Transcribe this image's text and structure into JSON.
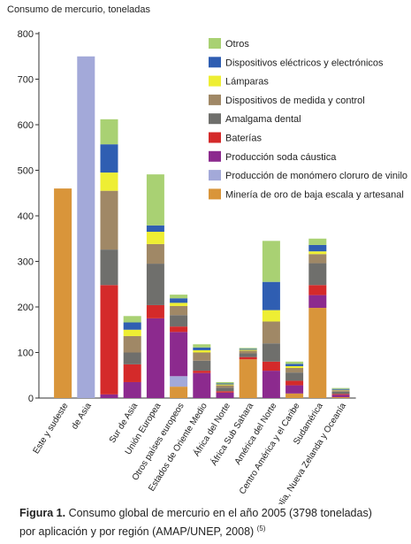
{
  "chart_data": {
    "type": "stacked-bar",
    "ylabel": "Consumo de mercurio, toneladas",
    "categories": [
      "Este y sudeste",
      "de Asia",
      null,
      "Sur de Asia",
      "Unión Europea",
      "Otros países europeos",
      "Estados de Oriente Medio",
      "África del Norte",
      "África Sub Sahara",
      "América del Norte",
      "Centro América y el Caribe",
      "Sudamérica",
      "Australia, Nueva Zelanda y Oceanía"
    ],
    "series": [
      {
        "name": "Minería de oro de baja escala y artesanal",
        "color": "#d9953a",
        "values": [
          460,
          0,
          0,
          0,
          0,
          25,
          0,
          0,
          85,
          0,
          10,
          198,
          2
        ]
      },
      {
        "name": "Producción de monómero cloruro de vinilo",
        "color": "#a3a9d9",
        "values": [
          0,
          750,
          0,
          0,
          0,
          23,
          0,
          0,
          0,
          0,
          0,
          0,
          0
        ]
      },
      {
        "name": "Producción soda cáustica",
        "color": "#8c2a8e",
        "values": [
          0,
          0,
          8,
          35,
          175,
          97,
          55,
          12,
          0,
          60,
          18,
          28,
          5
        ]
      },
      {
        "name": "Baterías",
        "color": "#d42a2a",
        "values": [
          0,
          0,
          240,
          39,
          29,
          12,
          5,
          3,
          5,
          20,
          10,
          22,
          2
        ]
      },
      {
        "name": "Amalgama dental",
        "color": "#6f6f6c",
        "values": [
          0,
          0,
          78,
          26,
          91,
          25,
          22,
          8,
          8,
          40,
          18,
          48,
          5
        ]
      },
      {
        "name": "Dispositivos de medida y control",
        "color": "#a08866",
        "values": [
          0,
          0,
          129,
          36,
          43,
          20,
          18,
          5,
          6,
          48,
          10,
          20,
          3
        ]
      },
      {
        "name": "Lámparas",
        "color": "#eeee33",
        "values": [
          0,
          0,
          40,
          14,
          27,
          7,
          5,
          2,
          2,
          25,
          4,
          6,
          1
        ]
      },
      {
        "name": "Dispositivos eléctricos y electrónicos",
        "color": "#2f5eb2",
        "values": [
          0,
          0,
          62,
          16,
          14,
          10,
          6,
          2,
          2,
          62,
          5,
          14,
          2
        ]
      },
      {
        "name": "Otros",
        "color": "#a9d173",
        "values": [
          0,
          0,
          55,
          14,
          112,
          8,
          7,
          3,
          2,
          90,
          5,
          14,
          2
        ]
      }
    ],
    "ylim": [
      0,
      800
    ],
    "yticks": [
      0,
      100,
      200,
      300,
      400,
      500,
      600,
      700,
      800
    ],
    "caption_label": "Figura 1.",
    "caption": "Consumo global de mercurio en el año 2005 (3798 toneladas) por aplicación y por región (AMAP/UNEP, 2008)",
    "caption_ref": "(5)"
  }
}
